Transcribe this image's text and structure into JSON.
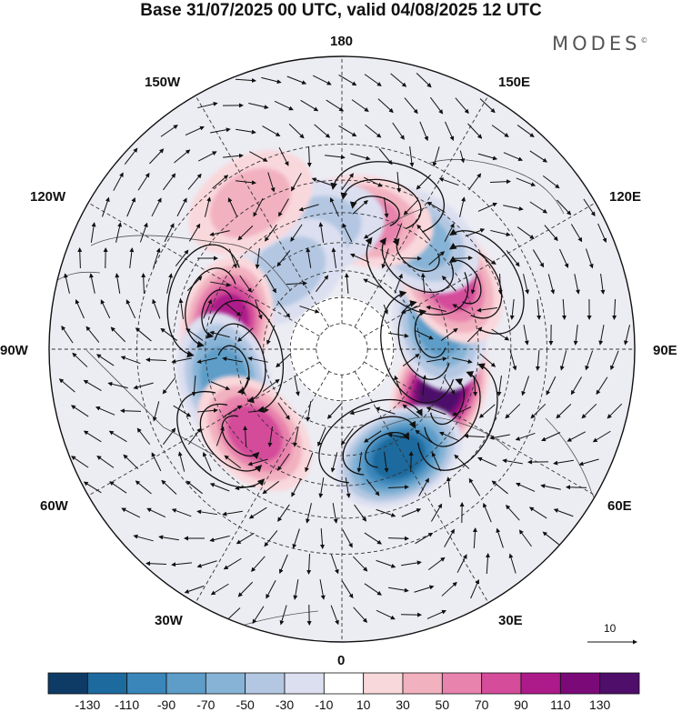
{
  "header": {
    "title": "Base 31/07/2025 00 UTC, valid 04/08/2025 12 UTC",
    "brand": "MODES",
    "brand_mark": "©"
  },
  "map": {
    "projection": "north-polar-stereographic",
    "longitude_labels": {
      "top": "180",
      "bottom": "0",
      "left": "90W",
      "right": "90E",
      "upper_left_1": "150W",
      "upper_left_2": "120W",
      "lower_left_1": "60W",
      "lower_left_2": "30W",
      "upper_right_1": "150E",
      "upper_right_2": "120E",
      "lower_right_1": "60E",
      "lower_right_2": "30E"
    },
    "reference_vector_label": "10",
    "anomaly_centers": [
      {
        "sign": "positive",
        "lon": 67,
        "lat": 50,
        "magnitude": 125
      },
      {
        "sign": "negative",
        "lon": 28,
        "lat": 45,
        "magnitude": -115
      },
      {
        "sign": "negative",
        "lon": 104,
        "lat": 52,
        "magnitude": -75
      },
      {
        "sign": "positive",
        "lon": 122,
        "lat": 43,
        "magnitude": 75
      },
      {
        "sign": "negative",
        "lon": 145,
        "lat": 41,
        "magnitude": -60
      },
      {
        "sign": "positive",
        "lon": 169,
        "lat": 42,
        "magnitude": 55
      },
      {
        "sign": "negative",
        "lon": -169,
        "lat": 44,
        "magnitude": -35
      },
      {
        "sign": "negative",
        "lon": -144,
        "lat": 54,
        "magnitude": -40
      },
      {
        "sign": "positive",
        "lon": -103,
        "lat": 46,
        "magnitude": 85
      },
      {
        "sign": "negative",
        "lon": -76,
        "lat": 45,
        "magnitude": -80
      },
      {
        "sign": "positive",
        "lon": -46,
        "lat": 45,
        "magnitude": 65
      },
      {
        "sign": "positive",
        "lon": -148,
        "lat": 29,
        "magnitude": 30
      }
    ]
  },
  "colorbar": {
    "tick_labels": [
      "-130",
      "-110",
      "-90",
      "-70",
      "-50",
      "-30",
      "-10",
      "10",
      "30",
      "50",
      "70",
      "90",
      "110",
      "130"
    ],
    "colors": [
      "#0d3b66",
      "#1d6a9e",
      "#3a86ba",
      "#5d9dc8",
      "#86b3d6",
      "#b3c7e2",
      "#dcdff0",
      "#ffffff",
      "#f9d8dc",
      "#f2b1bf",
      "#e883ad",
      "#d44c9a",
      "#ad1a8a",
      "#7b0a78",
      "#4e0e6a"
    ]
  }
}
